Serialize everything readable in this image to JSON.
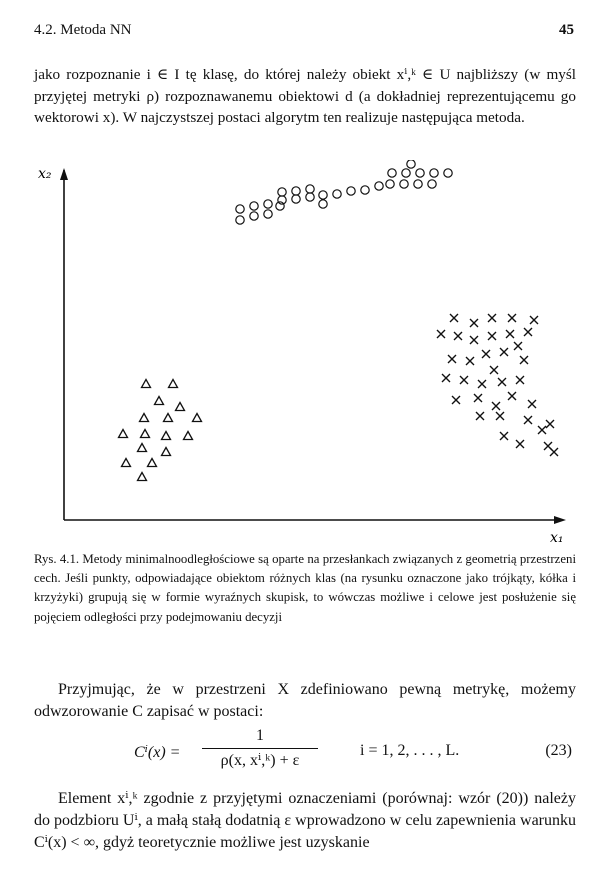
{
  "header": {
    "section": "4.2. Metoda NN",
    "page_number": "45"
  },
  "paragraph_1": "jako rozpoznanie i ∈ I tę klasę, do której należy obiekt x^{i,k} ∈ U najbliższy (w myśl przyjętej metryki ρ) rozpoznawanemu obiektowi d (a dokładniej reprezentującemu go wektorowi x). W najczystszej postaci algorytm ten realizuje następująca metoda.",
  "paragraph_1_display": "jako rozpoznanie i ∈ I tę klasę, do której należy obiekt xⁱ,ᵏ ∈ U najbliższy (w myśl przyjętej metryki ρ) rozpoznawanemu obiektowi d (a dokładniej reprezentującemu go wektorowi x). W najczystszej postaci algorytm ten realizuje następująca metoda.",
  "figure": {
    "y_axis_label": "x₂",
    "x_axis_label": "x₁",
    "marker_symbols": {
      "circle": "o",
      "cross": "×",
      "triangle": "▵"
    }
  },
  "caption": "Rys. 4.1. Metody minimalnoodległościowe są oparte na przesłankach związanych z geometrią przestrzeni cech. Jeśli punkty, odpowiadające obiektom różnych klas (na rysunku oznaczone jako trójkąty, kółka i krzyżyki) grupują się w formie wyraźnych skupisk, to wówczas możliwe i celowe jest posłużenie się pojęciem odległości przy podejmowaniu decyzji",
  "paragraph_2": "Przyjmując, że w przestrzeni X zdefiniowano pewną metrykę, możemy odwzorowanie C zapisać w postaci:",
  "formula": {
    "lhs": "Cⁱ(x) =",
    "numerator": "1",
    "denominator": "ρ(x, xⁱ,ᵏ) + ε",
    "range": "i = 1, 2, . . . , L.",
    "equation_number": "(23)"
  },
  "paragraph_3": "Element xⁱ,ᵏ zgodnie z przyjętymi oznaczeniami (porównaj: wzór (20)) należy do podzbioru Uⁱ, a małą stałą dodatnią ε wprowadzono w celu zapewnienia warunku Cⁱ(x) < ∞, gdyż teoretycznie możliwe jest uzyskanie"
}
